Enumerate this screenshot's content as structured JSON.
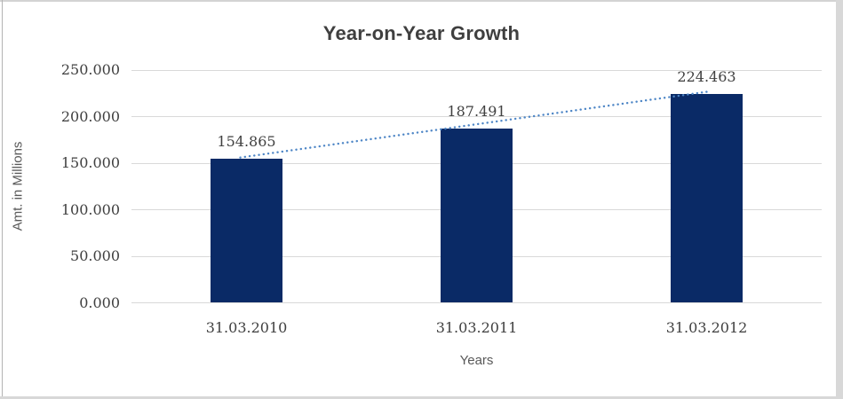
{
  "chart_data": {
    "type": "bar",
    "title": "Year-on-Year Growth",
    "xlabel": "Years",
    "ylabel": "Amt. in Millions",
    "categories": [
      "31.03.2010",
      "31.03.2011",
      "31.03.2012"
    ],
    "values": [
      154.865,
      187.491,
      224.463
    ],
    "data_labels": [
      "154.865",
      "187.491",
      "224.463"
    ],
    "ylim": [
      0,
      250
    ],
    "ytick_interval": 50,
    "ytick_labels": [
      "0.000",
      "50.000",
      "100.000",
      "150.000",
      "200.000",
      "250.000"
    ],
    "grid": true,
    "legend_position": "none",
    "trendline": {
      "type": "linear",
      "style": "dotted"
    }
  },
  "colors": {
    "bar_fill": "#0a2a66",
    "trendline": "#4e86c6",
    "gridline": "#d9d9d9",
    "title_text": "#3f3f3f",
    "tick_text": "#404040",
    "axis_title_text": "#595959",
    "background": "#ffffff",
    "frame_border": "#d3d3d3"
  }
}
